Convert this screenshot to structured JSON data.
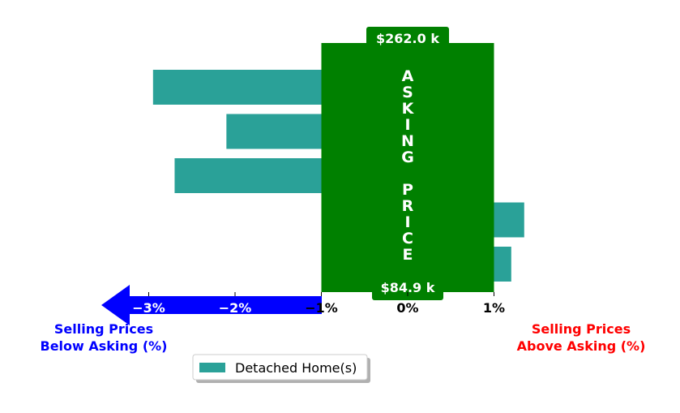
{
  "chart_data": {
    "type": "bar",
    "orientation": "horizontal",
    "series": [
      {
        "name": "Detached Home(s)",
        "color": "#2aa198",
        "values": [
          -2.95,
          -2.1,
          -2.7,
          1.35,
          1.2
        ]
      }
    ],
    "xlim": [
      -4,
      3
    ],
    "x_ticks": [
      {
        "value": -3,
        "label": "−3%"
      },
      {
        "value": -2,
        "label": "−2%"
      },
      {
        "value": -1,
        "label": "−1%"
      },
      {
        "value": 0,
        "label": "0%"
      },
      {
        "value": 1,
        "label": "1%"
      }
    ],
    "asking_band": {
      "range": [
        -1,
        1
      ],
      "color": "#008000",
      "text": "ASKING PRICE",
      "top_label": "$262.0 k",
      "bottom_label": "$84.9 k"
    },
    "left_caption": {
      "lines": [
        "Selling Prices",
        "Below Asking (%)"
      ],
      "color": "#0000ff"
    },
    "right_caption": {
      "lines": [
        "Selling Prices",
        "Above Asking (%)"
      ],
      "color": "#ff0000"
    },
    "arrow_color": "#0000ff",
    "legend": {
      "placement": "bottom-center",
      "entries": [
        "Detached Home(s)"
      ]
    },
    "grid": false
  }
}
